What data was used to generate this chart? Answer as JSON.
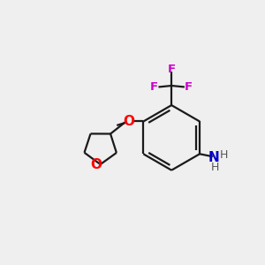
{
  "background_color": "#efefef",
  "bond_color": "#1a1a1a",
  "o_color": "#ff0000",
  "n_color": "#0000cc",
  "f_color": "#cc00cc",
  "h_color": "#555555",
  "lw": 1.6,
  "figsize": [
    3.0,
    3.0
  ],
  "dpi": 100,
  "xlim": [
    0,
    10
  ],
  "ylim": [
    0,
    10
  ]
}
